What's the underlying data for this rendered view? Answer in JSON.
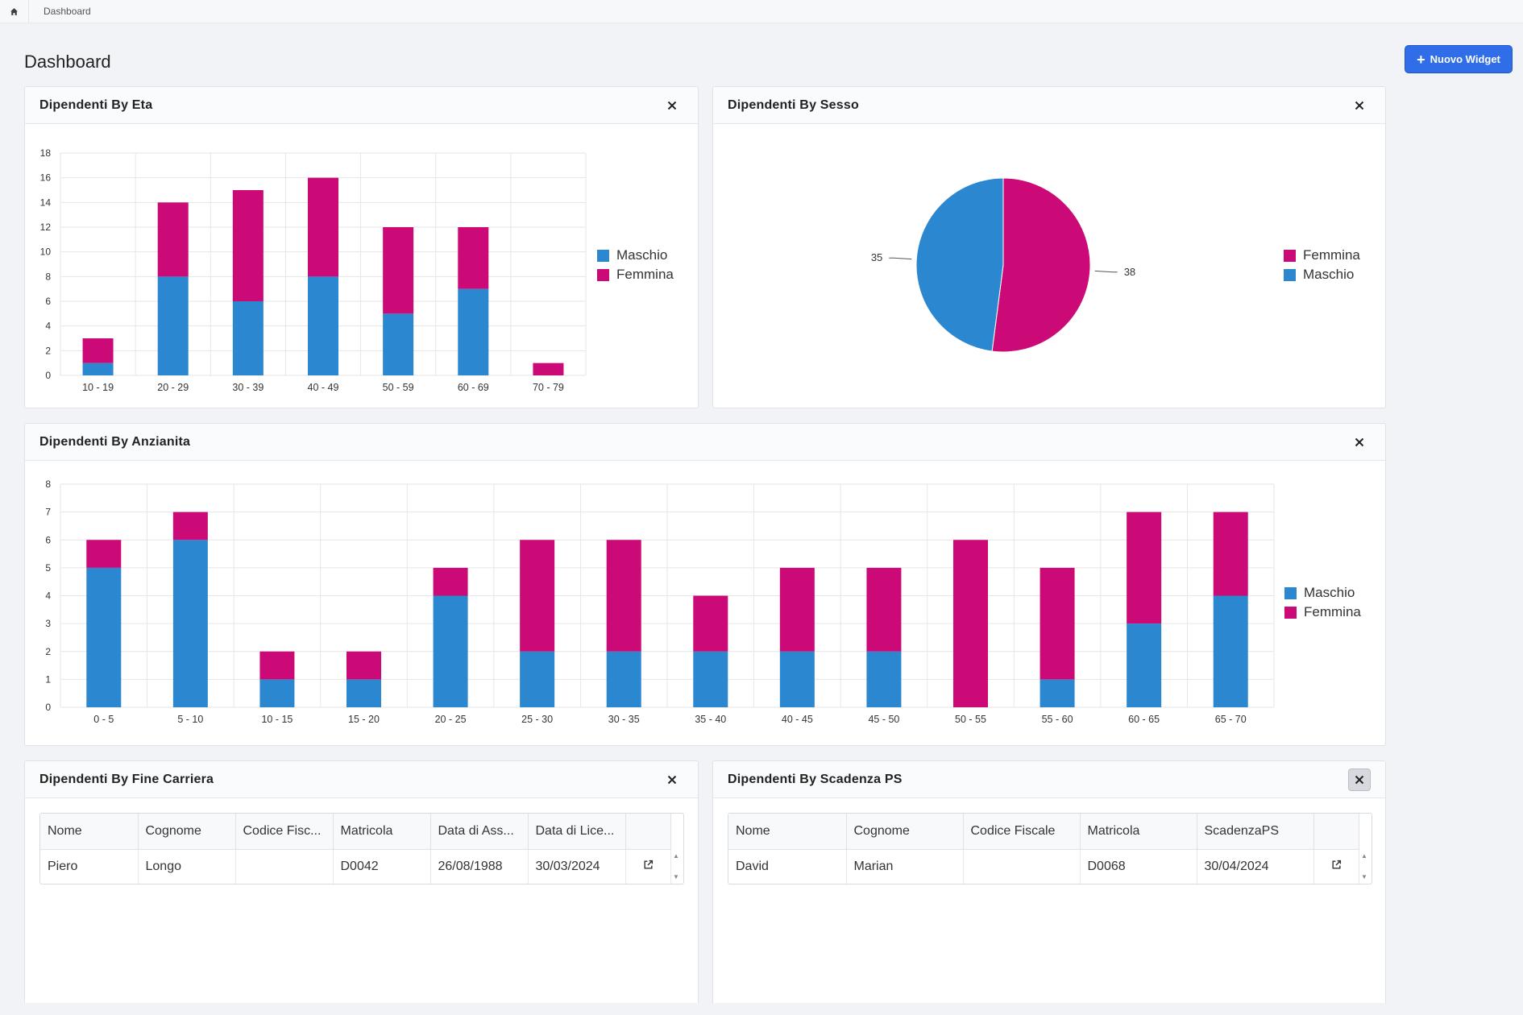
{
  "breadcrumb": {
    "home_icon": "home-icon",
    "current": "Dashboard"
  },
  "page": {
    "title": "Dashboard"
  },
  "toolbar": {
    "new_widget_label": "Nuovo Widget",
    "new_widget_icon": "plus-icon"
  },
  "colors": {
    "maschio": "#2b87cf",
    "femmina": "#cc0a77",
    "accent": "#2f6ee8"
  },
  "widgets": {
    "eta": {
      "title": "Dipendenti By Eta"
    },
    "sesso": {
      "title": "Dipendenti By Sesso"
    },
    "anzianita": {
      "title": "Dipendenti By Anzianita"
    },
    "fine_carriera": {
      "title": "Dipendenti By Fine Carriera",
      "columns": [
        "Nome",
        "Cognome",
        "Codice Fisc...",
        "Matricola",
        "Data di Ass...",
        "Data di Lice..."
      ],
      "rows": [
        [
          "Piero",
          "Longo",
          "",
          "D0042",
          "26/08/1988",
          "30/03/2024"
        ]
      ]
    },
    "scadenza_ps": {
      "title": "Dipendenti By Scadenza PS",
      "columns": [
        "Nome",
        "Cognome",
        "Codice Fiscale",
        "Matricola",
        "ScadenzaPS"
      ],
      "rows": [
        [
          "David",
          "Marian",
          "",
          "D0068",
          "30/04/2024"
        ]
      ]
    }
  },
  "chart_data": [
    {
      "id": "eta",
      "type": "bar",
      "stacked": true,
      "title": "Dipendenti By Eta",
      "categories": [
        "10 - 19",
        "20 - 29",
        "30 - 39",
        "40 - 49",
        "50 - 59",
        "60 - 69",
        "70 - 79"
      ],
      "series": [
        {
          "name": "Maschio",
          "values": [
            1,
            8,
            6,
            8,
            5,
            7,
            0
          ]
        },
        {
          "name": "Femmina",
          "values": [
            2,
            6,
            9,
            8,
            7,
            5,
            1
          ]
        }
      ],
      "ylim": [
        0,
        18
      ],
      "yticks": [
        0,
        2,
        4,
        6,
        8,
        10,
        12,
        14,
        16,
        18
      ],
      "legend": [
        "Maschio",
        "Femmina"
      ],
      "legend_position": "right"
    },
    {
      "id": "sesso",
      "type": "pie",
      "title": "Dipendenti By Sesso",
      "slices": [
        {
          "name": "Femmina",
          "value": 38
        },
        {
          "name": "Maschio",
          "value": 35
        }
      ],
      "legend": [
        "Femmina",
        "Maschio"
      ],
      "legend_position": "right"
    },
    {
      "id": "anzianita",
      "type": "bar",
      "stacked": true,
      "title": "Dipendenti By Anzianita",
      "categories": [
        "0 - 5",
        "5 - 10",
        "10 - 15",
        "15 - 20",
        "20 - 25",
        "25 - 30",
        "30 - 35",
        "35 - 40",
        "40 - 45",
        "45 - 50",
        "50 - 55",
        "55 - 60",
        "60 - 65",
        "65 - 70"
      ],
      "series": [
        {
          "name": "Maschio",
          "values": [
            5,
            6,
            1,
            1,
            4,
            2,
            2,
            2,
            2,
            2,
            0,
            1,
            3,
            4
          ]
        },
        {
          "name": "Femmina",
          "values": [
            1,
            1,
            1,
            1,
            1,
            4,
            4,
            2,
            3,
            3,
            6,
            4,
            4,
            3
          ]
        }
      ],
      "ylim": [
        0,
        8
      ],
      "yticks": [
        0,
        1,
        2,
        3,
        4,
        5,
        6,
        7,
        8
      ],
      "legend": [
        "Maschio",
        "Femmina"
      ],
      "legend_position": "right"
    }
  ]
}
